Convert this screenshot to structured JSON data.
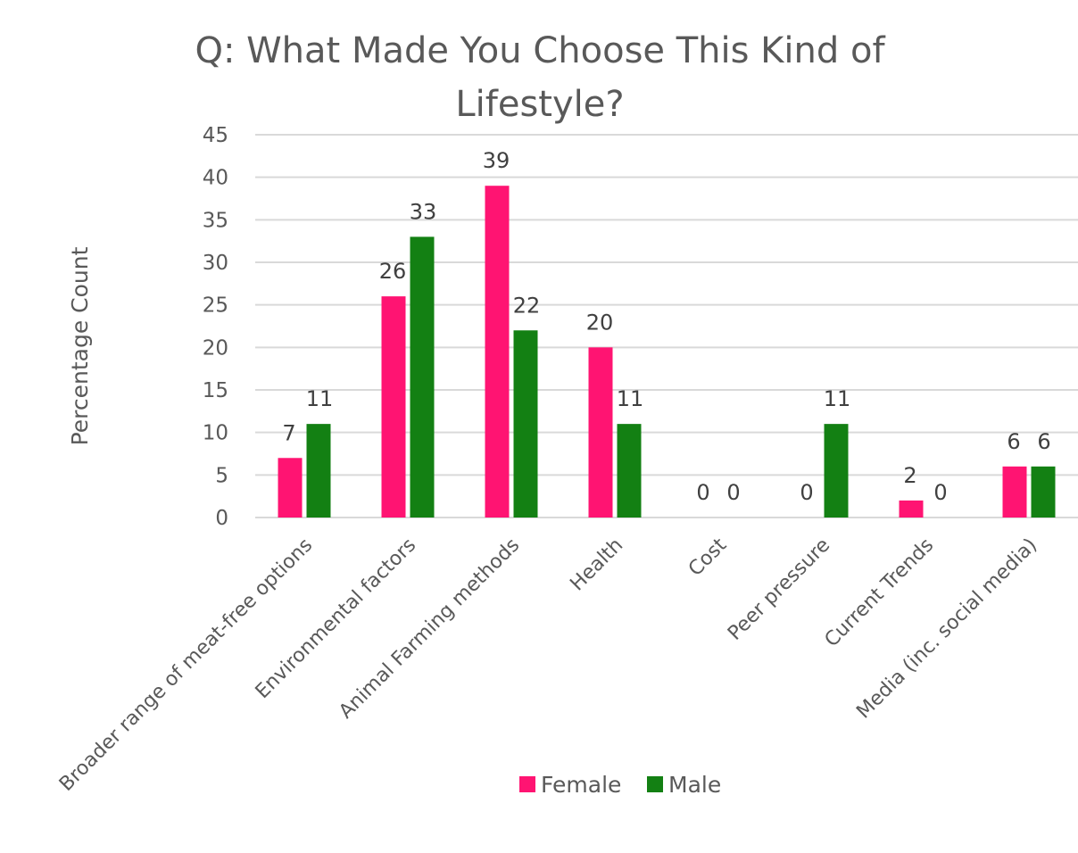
{
  "chart_data": {
    "type": "bar",
    "title_lines": [
      "Q: What Made You Choose This Kind of",
      "Lifestyle?"
    ],
    "ylabel": "Percentage Count",
    "xlabel": "",
    "ylim": [
      0,
      45
    ],
    "yticks": [
      0,
      5,
      10,
      15,
      20,
      25,
      30,
      35,
      40,
      45
    ],
    "grid": true,
    "legend_position": "bottom",
    "categories": [
      "Broader range of meat-free options",
      "Environmental factors",
      "Animal Farming methods",
      "Health",
      "Cost",
      "Peer pressure",
      "Current Trends",
      "Media (inc. social media)"
    ],
    "series": [
      {
        "name": "Female",
        "color": "#ff1472",
        "values": [
          7,
          26,
          39,
          20,
          0,
          0,
          2,
          6
        ]
      },
      {
        "name": "Male",
        "color": "#138013",
        "values": [
          11,
          33,
          22,
          11,
          0,
          11,
          0,
          6
        ]
      }
    ]
  }
}
